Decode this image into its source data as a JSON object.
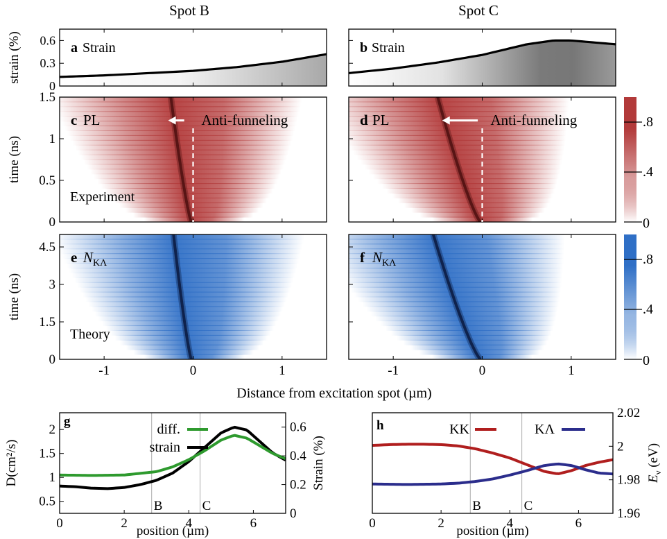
{
  "header": {
    "left": "Spot B",
    "right": "Spot C"
  },
  "xlabel_top": "Distance from excitation spot (µm)",
  "colors": {
    "red": "#b23a3a",
    "blue": "#2f6fc6",
    "green": "#2e9a2e",
    "kk": "#b01e1e",
    "kl": "#2b2d8c",
    "guide": "#aaaaaa",
    "dash": "#ffffff"
  },
  "chart_data": [
    {
      "id": "a",
      "type": "area",
      "tag": "a",
      "label": "Strain",
      "ylabel": "strain (%)",
      "xlim": [
        -1.5,
        1.5
      ],
      "ylim": [
        0,
        0.75
      ],
      "yticks": [
        0,
        0.3,
        0.6
      ],
      "ytick_labels": [
        "0",
        "0.3",
        "0.6"
      ],
      "x": [
        -1.5,
        -1.0,
        -0.5,
        0.0,
        0.5,
        1.0,
        1.5
      ],
      "y": [
        0.12,
        0.14,
        0.17,
        0.2,
        0.25,
        0.32,
        0.42
      ]
    },
    {
      "id": "b",
      "type": "area",
      "tag": "b",
      "label": "Strain",
      "xlim": [
        -1.5,
        1.5
      ],
      "ylim": [
        0,
        0.75
      ],
      "x": [
        -1.5,
        -1.0,
        -0.5,
        0.0,
        0.5,
        0.8,
        1.0,
        1.5
      ],
      "y": [
        0.17,
        0.23,
        0.31,
        0.41,
        0.55,
        0.6,
        0.6,
        0.55
      ]
    },
    {
      "id": "c",
      "type": "heatmap",
      "tag": "c",
      "label": "PL",
      "annotation": "Anti-funneling",
      "note": "Experiment",
      "ylabel": "time (ns)",
      "xlim": [
        -1.5,
        1.5
      ],
      "ylim": [
        0,
        1.5
      ],
      "yticks": [
        0,
        0.5,
        1,
        1.5
      ],
      "ytick_labels": [
        "0",
        "0.5",
        "1",
        "1.5"
      ],
      "ridge_x": [
        -0.02,
        -0.25
      ],
      "arrow_x": [
        -0.1,
        -0.28
      ],
      "arrow_t": 1.22,
      "dashed_line_x": 0,
      "colorscale": "white-red"
    },
    {
      "id": "d",
      "type": "heatmap",
      "tag": "d",
      "label": "PL",
      "annotation": "Anti-funneling",
      "xlim": [
        -1.5,
        1.5
      ],
      "ylim": [
        0,
        1.5
      ],
      "ridge_x": [
        -0.02,
        -0.5
      ],
      "arrow_x": [
        -0.05,
        -0.45
      ],
      "arrow_t": 1.22,
      "dashed_line_x": 0,
      "colorscale": "white-red",
      "colorbar": {
        "ticks": [
          0,
          0.4,
          0.8
        ],
        "tick_labels": [
          "0",
          ".4",
          ".8"
        ]
      }
    },
    {
      "id": "e",
      "type": "heatmap",
      "tag": "e",
      "label": "N",
      "label_sub": "KΛ",
      "note": "Theory",
      "ylabel": "time (ns)",
      "xlim": [
        -1.5,
        1.5
      ],
      "ylim": [
        0,
        5
      ],
      "yticks": [
        0,
        1.5,
        3,
        4.5
      ],
      "ytick_labels": [
        "0",
        "1.5",
        "3",
        "4.5"
      ],
      "xticks": [
        -1,
        0,
        1
      ],
      "xtick_labels": [
        "-1",
        "0",
        "1"
      ],
      "ridge_x": [
        -0.02,
        -0.22
      ],
      "colorscale": "white-blue"
    },
    {
      "id": "f",
      "type": "heatmap",
      "tag": "f",
      "label": "N",
      "label_sub": "KΛ",
      "xlim": [
        -1.5,
        1.5
      ],
      "ylim": [
        0,
        5
      ],
      "xticks": [
        -1,
        0,
        1
      ],
      "xtick_labels": [
        "-1",
        "0",
        "1"
      ],
      "ridge_x": [
        -0.02,
        -0.55
      ],
      "colorscale": "white-blue",
      "colorbar": {
        "ticks": [
          0,
          0.4,
          0.8
        ],
        "tick_labels": [
          "0",
          ".4",
          ".8"
        ]
      }
    },
    {
      "id": "g",
      "type": "line",
      "tag": "g",
      "xlabel": "position (µm)",
      "xlim": [
        0,
        7
      ],
      "xticks": [
        0,
        2,
        4,
        6
      ],
      "xtick_labels": [
        "0",
        "2",
        "4",
        "6"
      ],
      "ylabel_left": "D(cm²/s)",
      "ylim_left": [
        0.25,
        2.35
      ],
      "yticks_left": [
        0.5,
        1,
        1.5,
        2
      ],
      "ytick_labels_left": [
        "0.5",
        "1",
        "1.5",
        "2"
      ],
      "ylabel_right": "Strain (%)",
      "ylim_right": [
        0,
        0.7
      ],
      "yticks_right": [
        0,
        0.2,
        0.4,
        0.6
      ],
      "ytick_labels_right": [
        "0",
        "0.2",
        "0.4",
        "0.6"
      ],
      "guides": [
        {
          "x": 2.85,
          "label": "B"
        },
        {
          "x": 4.35,
          "label": "C"
        }
      ],
      "series": [
        {
          "name": "diff.",
          "axis": "left",
          "x": [
            0,
            1,
            2,
            3,
            3.5,
            4,
            4.5,
            5,
            5.4,
            5.8,
            6.2,
            6.6,
            7
          ],
          "y": [
            1.05,
            1.04,
            1.05,
            1.12,
            1.22,
            1.37,
            1.56,
            1.78,
            1.88,
            1.82,
            1.66,
            1.5,
            1.39
          ]
        },
        {
          "name": "strain",
          "axis": "right",
          "x": [
            0,
            0.5,
            1,
            1.5,
            2,
            2.5,
            3,
            3.5,
            4,
            4.5,
            5,
            5.4,
            5.8,
            6.2,
            6.6,
            7
          ],
          "y": [
            0.19,
            0.185,
            0.175,
            0.172,
            0.18,
            0.2,
            0.23,
            0.28,
            0.36,
            0.46,
            0.56,
            0.6,
            0.58,
            0.5,
            0.42,
            0.37
          ]
        }
      ]
    },
    {
      "id": "h",
      "type": "line",
      "tag": "h",
      "xlabel": "position (µm)",
      "xlim": [
        0,
        7
      ],
      "xticks": [
        0,
        2,
        4,
        6
      ],
      "xtick_labels": [
        "0",
        "2",
        "4",
        "6"
      ],
      "ylabel_right": "E",
      "ylabel_right_sub": "ν",
      "ylabel_right_unit": " (eV)",
      "ylim": [
        1.96,
        2.02
      ],
      "yticks": [
        1.96,
        1.98,
        2.0,
        2.02
      ],
      "ytick_labels": [
        "1.96",
        "1.98",
        "2",
        "2.02"
      ],
      "guides": [
        {
          "x": 2.85,
          "label": "B"
        },
        {
          "x": 4.35,
          "label": "C"
        }
      ],
      "series": [
        {
          "name": "KK",
          "x": [
            0,
            0.5,
            1,
            1.5,
            2,
            2.5,
            3,
            3.5,
            4,
            4.5,
            5,
            5.4,
            5.8,
            6.2,
            6.6,
            7
          ],
          "y": [
            2.0005,
            2.001,
            2.0012,
            2.0012,
            2.001,
            2.0002,
            1.9985,
            1.996,
            1.993,
            1.989,
            1.985,
            1.9835,
            1.9855,
            1.9885,
            1.9905,
            1.992
          ]
        },
        {
          "name": "KΛ",
          "x": [
            0,
            1,
            2,
            2.5,
            3,
            3.5,
            4,
            4.5,
            5,
            5.4,
            5.8,
            6.2,
            6.6,
            7
          ],
          "y": [
            1.9775,
            1.9772,
            1.9775,
            1.978,
            1.979,
            1.9805,
            1.9828,
            1.9855,
            1.9885,
            1.9895,
            1.9885,
            1.986,
            1.984,
            1.9835
          ]
        }
      ]
    }
  ]
}
